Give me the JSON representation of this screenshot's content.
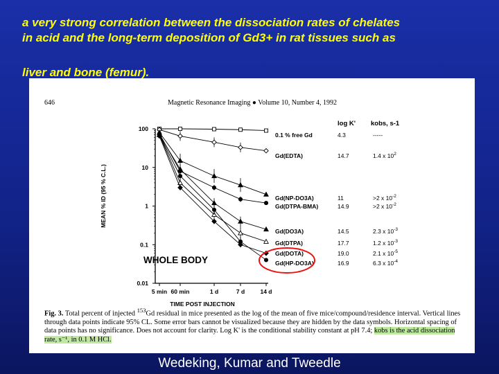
{
  "slide": {
    "headline_line1": "a very strong correlation between the dissociation rates of chelates",
    "headline_line2": "in acid and the long-term deposition of Gd3+ in rat tissues such as",
    "headline_line3": "liver and bone (femur).",
    "credit": "Wedeking, Kumar and Tweedle"
  },
  "figure": {
    "page_number": "646",
    "journal_header": "Magnetic Resonance Imaging ● Volume 10, Number 4, 1992",
    "caption_fig": "Fig. 3.",
    "caption_text_a": "Total percent of injected ",
    "caption_sup": "153",
    "caption_text_b": "Gd residual in mice presented as the log of the mean of five mice/compound/residence interval. Vertical lines through data points indicate 95% CL. Some error bars cannot be visualized because they are hidden by the data symbols. Horizontal spacing of data points has no significance. Does not account for clarity. Log K' is the conditional stability constant at pH 7.4; ",
    "caption_highlight": "kobs is the acid dissociation rate, s⁻¹, in 0.1 M HCl."
  },
  "chart_data": {
    "type": "line",
    "title": "",
    "panel_label": "WHOLE BODY",
    "xlabel": "TIME POST INJECTION",
    "ylabel": "MEAN % ID (95 % C.L.)",
    "y_scale": "log",
    "ylim": [
      0.01,
      100
    ],
    "y_ticks": [
      "100",
      "10",
      "1",
      "0.1",
      "0.01"
    ],
    "categories": [
      "5 min",
      "60 min",
      "1 d",
      "7 d",
      "14 d"
    ],
    "table_headers": [
      "log K'",
      "kobs, s-1"
    ],
    "highlight": "Gd(DOTA) and Gd(HP-DO3A) circled",
    "series": [
      {
        "name": "0.1 % free Gd",
        "logK": "4.3",
        "kobs": "-----",
        "marker": "square-open",
        "values": [
          100,
          100,
          98,
          95,
          90
        ]
      },
      {
        "name": "Gd(EDTA)",
        "logK": "14.7",
        "kobs": "1.4 x 10^2",
        "marker": "diamond-open",
        "values": [
          95,
          65,
          45,
          33,
          27
        ]
      },
      {
        "name": "Gd(NP-DO3A)",
        "logK": "11",
        "kobs": ">2 x 10^-2",
        "marker": "triangle-filled",
        "values": [
          80,
          15,
          6,
          3.5,
          2
        ]
      },
      {
        "name": "Gd(DTPA-BMA)",
        "logK": "14.9",
        "kobs": ">2 x 10^-2",
        "marker": "circle-filled",
        "values": [
          75,
          8,
          3,
          1.5,
          1.2
        ]
      },
      {
        "name": "Gd(DO3A)",
        "logK": "14.5",
        "kobs": "2.3 x 10^-3",
        "marker": "triangle-filled",
        "values": [
          70,
          9,
          1.2,
          0.4,
          0.25
        ]
      },
      {
        "name": "Gd(DTPA)",
        "logK": "17.7",
        "kobs": "1.2 x 10^-3",
        "marker": "triangle-open",
        "values": [
          70,
          4,
          0.6,
          0.2,
          0.12
        ]
      },
      {
        "name": "Gd(DOTA)",
        "logK": "19.0",
        "kobs": "2.1 x 10^-5",
        "marker": "diamond-filled",
        "values": [
          65,
          3,
          0.4,
          0.1,
          0.06
        ]
      },
      {
        "name": "Gd(HP-DO3A)",
        "logK": "16.9",
        "kobs": "6.3 x 10^-4",
        "marker": "circle-filled",
        "values": [
          70,
          6,
          0.8,
          0.12,
          0.04
        ]
      }
    ]
  }
}
